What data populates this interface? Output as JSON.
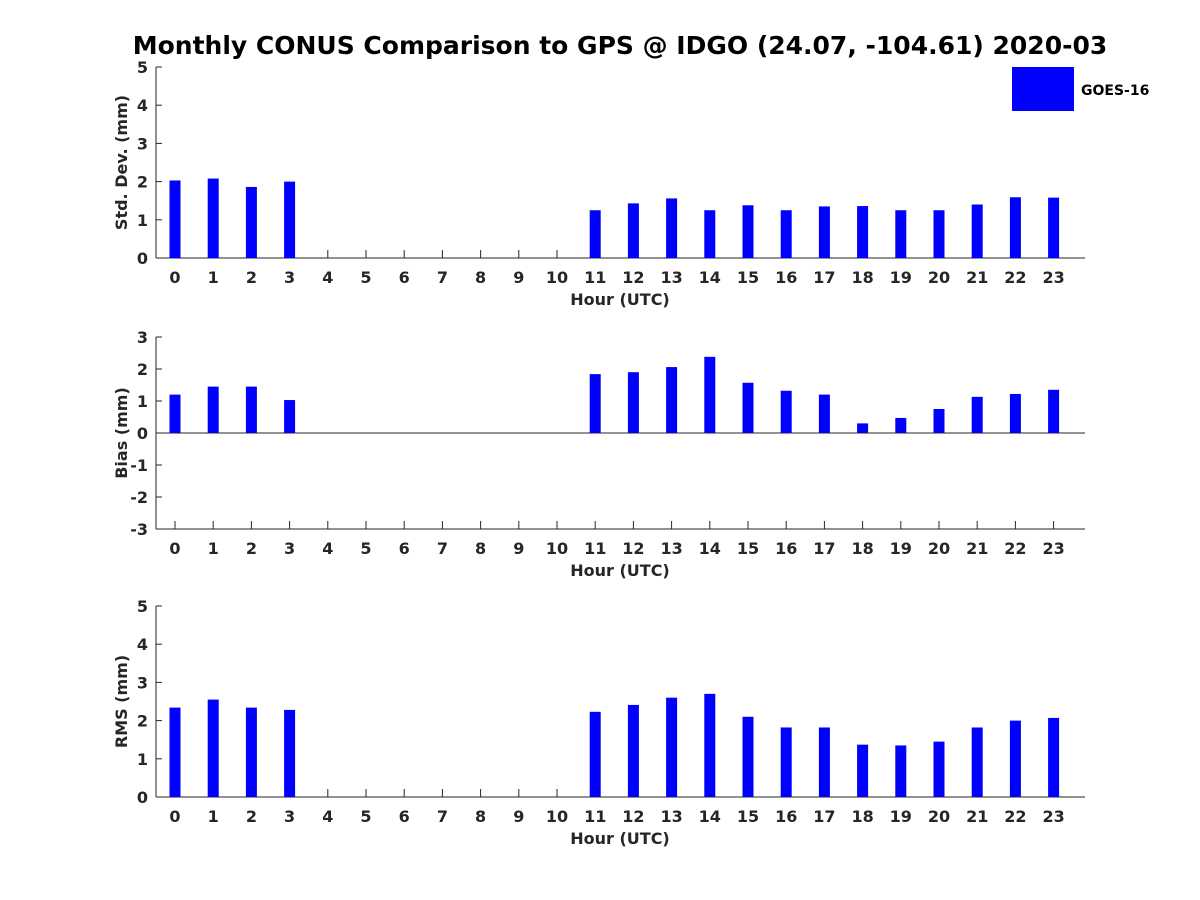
{
  "chart_data": {
    "title": "Monthly CONUS Comparison to GPS @ IDGO (24.07, -104.61) 2020-03",
    "legend": {
      "label": "GOES-16",
      "color": "#0000ff",
      "placement": "top-right"
    },
    "categories": [
      "0",
      "1",
      "2",
      "3",
      "4",
      "5",
      "6",
      "7",
      "8",
      "9",
      "10",
      "11",
      "12",
      "13",
      "14",
      "15",
      "16",
      "17",
      "18",
      "19",
      "20",
      "21",
      "22",
      "23"
    ],
    "panels": [
      {
        "type": "bar",
        "name": "std-dev",
        "ylabel": "Std. Dev. (mm)",
        "xlabel": "Hour (UTC)",
        "ylim": [
          0,
          5
        ],
        "yticks": [
          "0",
          "1",
          "2",
          "3",
          "4",
          "5"
        ],
        "values": [
          2.03,
          2.08,
          1.86,
          2.0,
          null,
          null,
          null,
          null,
          null,
          null,
          null,
          1.25,
          1.43,
          1.56,
          1.25,
          1.38,
          1.25,
          1.35,
          1.36,
          1.25,
          1.25,
          1.4,
          1.59,
          1.58
        ]
      },
      {
        "type": "bar",
        "name": "bias",
        "ylabel": "Bias (mm)",
        "xlabel": "Hour (UTC)",
        "ylim": [
          -3,
          3
        ],
        "yticks": [
          "-3",
          "-2",
          "-1",
          "0",
          "1",
          "2",
          "3"
        ],
        "values": [
          1.2,
          1.45,
          1.45,
          1.03,
          null,
          null,
          null,
          null,
          null,
          null,
          null,
          1.84,
          1.9,
          2.06,
          2.38,
          1.57,
          1.32,
          1.2,
          0.3,
          0.47,
          0.75,
          1.13,
          1.22,
          1.35
        ]
      },
      {
        "type": "bar",
        "name": "rms",
        "ylabel": "RMS (mm)",
        "xlabel": "Hour (UTC)",
        "ylim": [
          0,
          5
        ],
        "yticks": [
          "0",
          "1",
          "2",
          "3",
          "4",
          "5"
        ],
        "values": [
          2.34,
          2.55,
          2.34,
          2.28,
          null,
          null,
          null,
          null,
          null,
          null,
          null,
          2.23,
          2.41,
          2.6,
          2.7,
          2.1,
          1.82,
          1.82,
          1.37,
          1.35,
          1.45,
          1.82,
          2.0,
          2.07
        ]
      }
    ]
  }
}
